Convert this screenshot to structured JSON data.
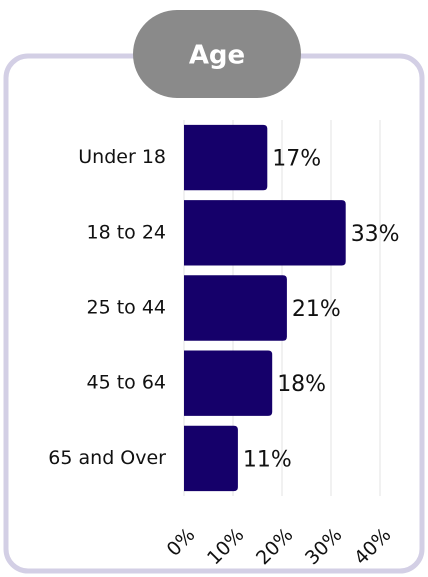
{
  "chart_data": {
    "type": "bar",
    "orientation": "horizontal",
    "title": "Age",
    "categories": [
      "Under 18",
      "18 to 24",
      "25 to 44",
      "45 to 64",
      "65 and Over"
    ],
    "values": [
      17,
      33,
      21,
      18,
      11
    ],
    "value_labels": [
      "17%",
      "33%",
      "21%",
      "18%",
      "11%"
    ],
    "color": "#15006a",
    "xlim": [
      0,
      40
    ],
    "xticks": [
      {
        "value": 0,
        "label": "0%"
      },
      {
        "value": 10,
        "label": "10%"
      },
      {
        "value": 20,
        "label": "20%"
      },
      {
        "value": 30,
        "label": "30%"
      },
      {
        "value": 40,
        "label": "40%"
      }
    ],
    "grid": true
  }
}
